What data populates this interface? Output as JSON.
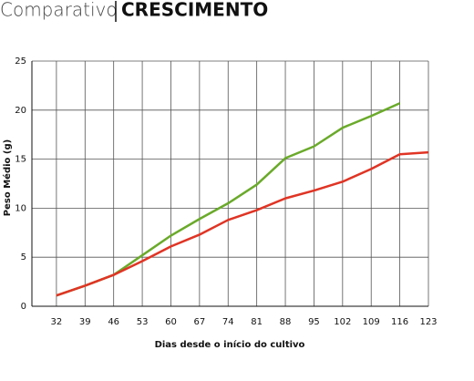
{
  "chart_data": {
    "type": "line",
    "title": "Comparativo",
    "title_emphasis": "CRESCIMENTO",
    "x_label": "Dias desde o início do cultivo",
    "y_label": "Peso Médio (g)",
    "x": [
      32,
      39,
      46,
      53,
      60,
      67,
      74,
      81,
      88,
      95,
      102,
      109,
      116,
      123
    ],
    "series": [
      {
        "color": "#6aaa2a",
        "values": [
          1.1,
          2.1,
          3.2,
          5.2,
          7.2,
          8.9,
          10.5,
          12.4,
          15.1,
          16.3,
          18.2,
          19.4,
          20.7,
          null
        ]
      },
      {
        "color": "#e03424",
        "values": [
          1.1,
          2.1,
          3.2,
          4.6,
          6.1,
          7.3,
          8.8,
          9.8,
          11.0,
          11.8,
          12.7,
          14.0,
          15.5,
          15.7
        ]
      }
    ],
    "xlim": [
      26,
      123
    ],
    "xticks": [
      32,
      39,
      46,
      53,
      60,
      67,
      74,
      81,
      88,
      95,
      102,
      109,
      116,
      123
    ],
    "ylim": [
      0,
      25
    ],
    "yticks": [
      0,
      5,
      10,
      15,
      20,
      25
    ],
    "grid": true
  }
}
